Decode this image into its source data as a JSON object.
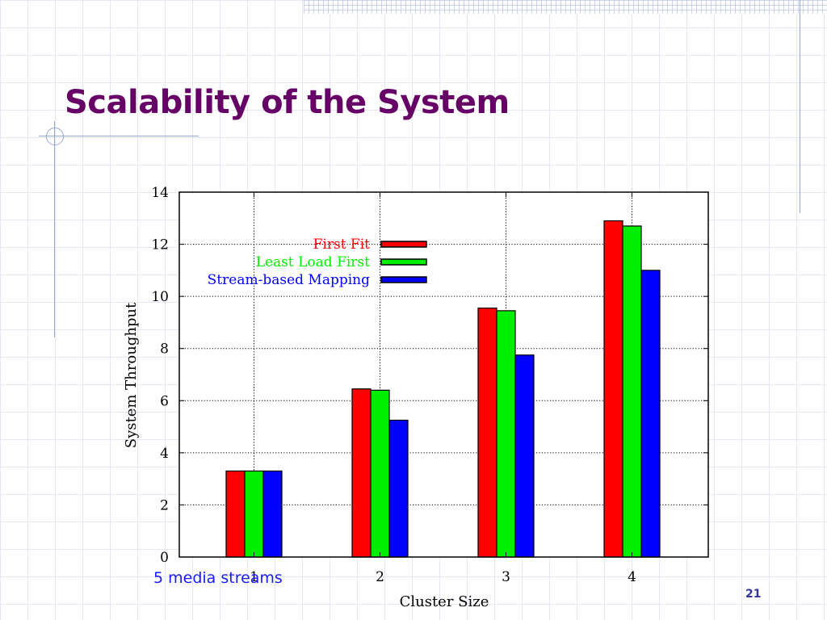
{
  "slide": {
    "title": "Scalability of the System",
    "footnote": "5 media streams",
    "page_number": "21"
  },
  "chart_data": {
    "type": "bar",
    "title": "",
    "xlabel": "Cluster Size",
    "ylabel": "System Throughput",
    "categories": [
      "1",
      "2",
      "3",
      "4"
    ],
    "ylim": [
      0,
      14
    ],
    "yticks": [
      0,
      2,
      4,
      6,
      8,
      10,
      12,
      14
    ],
    "grid": true,
    "legend_position": "top-left",
    "series": [
      {
        "name": "First Fit",
        "color": "#ff0000",
        "values": [
          3.3,
          6.45,
          9.55,
          12.9
        ]
      },
      {
        "name": "Least Load First",
        "color": "#00ee00",
        "values": [
          3.3,
          6.4,
          9.45,
          12.7
        ]
      },
      {
        "name": "Stream-based Mapping",
        "color": "#0000ff",
        "values": [
          3.3,
          5.25,
          7.75,
          11.0
        ]
      }
    ]
  }
}
